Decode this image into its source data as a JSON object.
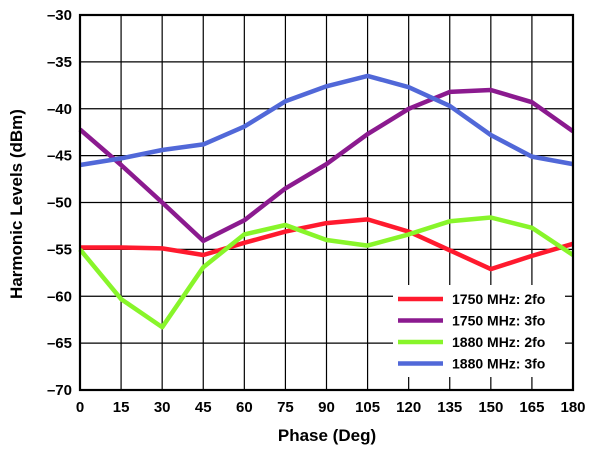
{
  "chart_data": {
    "type": "line",
    "xlabel": "Phase (Deg)",
    "ylabel": "Harmonic Levels (dBm)",
    "x": [
      0,
      15,
      30,
      45,
      60,
      75,
      90,
      105,
      120,
      135,
      150,
      165,
      180
    ],
    "xticks": [
      "0",
      "15",
      "30",
      "45",
      "60",
      "75",
      "90",
      "105",
      "120",
      "135",
      "150",
      "165",
      "180"
    ],
    "yticks": [
      "–70",
      "–65",
      "–60",
      "–55",
      "–50",
      "–45",
      "–40",
      "–35",
      "–30"
    ],
    "xlim": [
      0,
      180
    ],
    "ylim": [
      -70,
      -30
    ],
    "grid": true,
    "legend_position": "bottom-right",
    "series": [
      {
        "name": "1750 MHz: 2fo",
        "color": "#ff1a2e",
        "values": [
          -54.8,
          -54.8,
          -54.9,
          -55.6,
          -54.3,
          -53.1,
          -52.2,
          -51.8,
          -53.1,
          -55.1,
          -57.1,
          -55.7,
          -54.4
        ]
      },
      {
        "name": "1750 MHz: 3fo",
        "color": "#8b1a8f",
        "values": [
          -42.2,
          -46.0,
          -50.0,
          -54.1,
          -51.9,
          -48.5,
          -45.9,
          -42.7,
          -40.0,
          -38.2,
          -38.0,
          -39.3,
          -42.4
        ]
      },
      {
        "name": "1880 MHz: 2fo",
        "color": "#88f52a",
        "values": [
          -55.0,
          -60.3,
          -63.3,
          -56.9,
          -53.4,
          -52.4,
          -54.0,
          -54.6,
          -53.4,
          -52.0,
          -51.6,
          -52.7,
          -55.6
        ]
      },
      {
        "name": "1880 MHz: 3fo",
        "color": "#5168d8",
        "values": [
          -46.0,
          -45.3,
          -44.4,
          -43.8,
          -41.9,
          -39.2,
          -37.6,
          -36.5,
          -37.7,
          -39.7,
          -42.8,
          -45.1,
          -45.9
        ]
      }
    ]
  }
}
